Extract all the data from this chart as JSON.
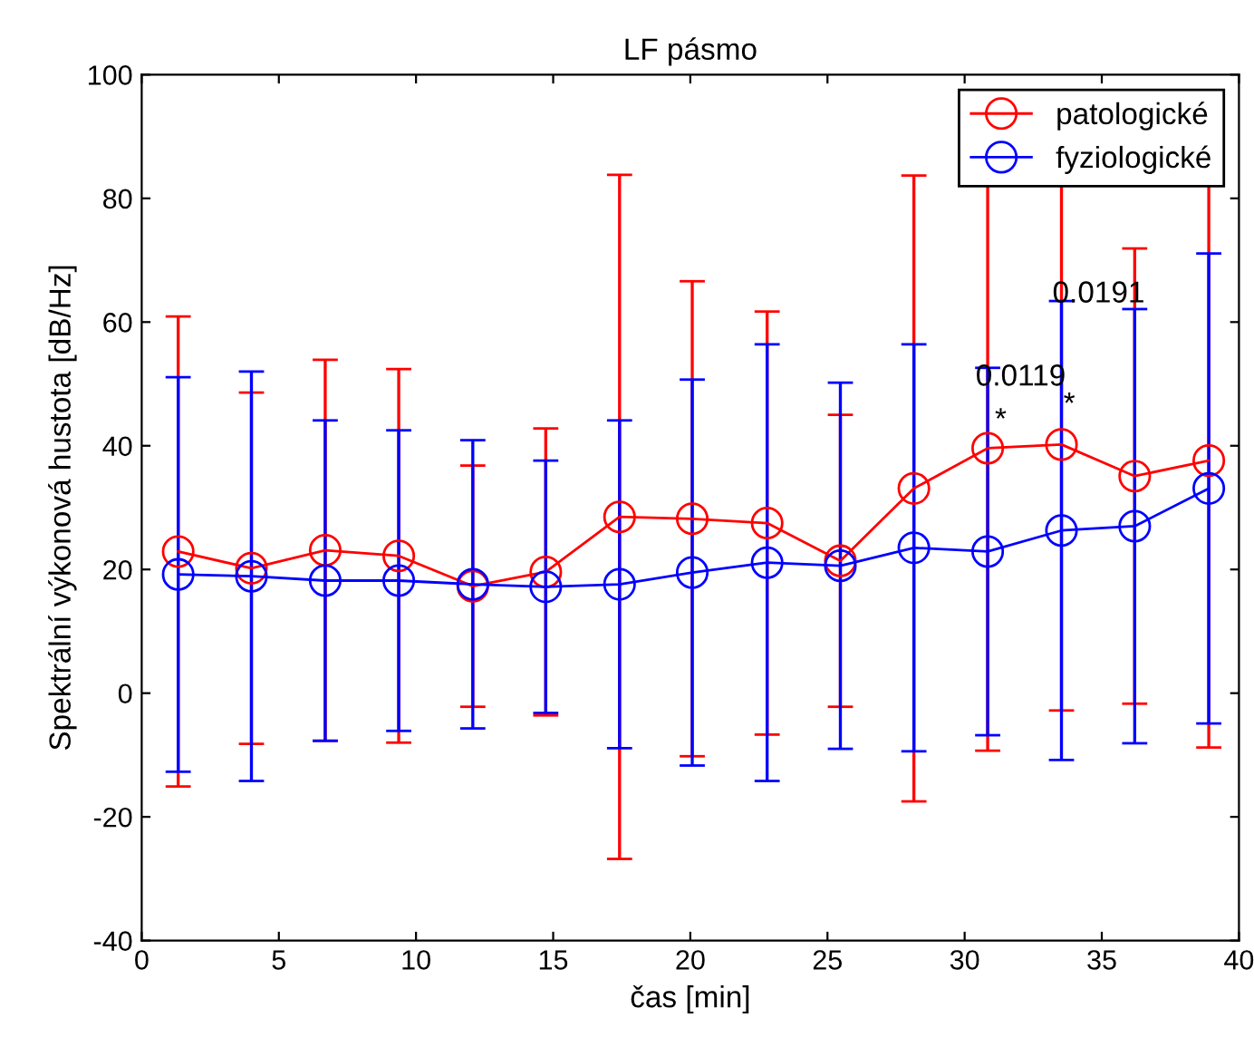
{
  "chart_data": {
    "type": "line",
    "title": "LF pásmo",
    "xlabel": "čas [min]",
    "ylabel": "Spektrální výkonová hustota [dB/Hz]",
    "x": [
      1.33,
      4.0,
      6.69,
      9.37,
      12.07,
      14.73,
      17.42,
      20.07,
      22.8,
      25.47,
      28.15,
      30.84,
      33.53,
      36.2,
      38.9
    ],
    "series": [
      {
        "name": "patologické",
        "color": "#ff0000",
        "values": [
          22.9,
          20.2,
          23.1,
          22.2,
          17.3,
          19.6,
          28.5,
          28.2,
          27.5,
          21.4,
          33.1,
          39.6,
          40.2,
          35.1,
          37.6
        ],
        "errors": [
          38.0,
          28.4,
          30.8,
          30.2,
          19.5,
          23.2,
          55.3,
          38.4,
          34.2,
          23.6,
          50.6,
          48.9,
          43.0,
          36.8,
          46.4
        ]
      },
      {
        "name": "fyziologické",
        "color": "#0000ff",
        "values": [
          19.2,
          18.9,
          18.2,
          18.2,
          17.6,
          17.2,
          17.6,
          19.5,
          21.1,
          20.6,
          23.5,
          22.9,
          26.3,
          27.0,
          33.1
        ],
        "errors": [
          31.9,
          33.1,
          25.9,
          24.3,
          23.3,
          20.4,
          26.5,
          31.2,
          35.3,
          29.6,
          32.9,
          29.7,
          37.1,
          35.1,
          38.0
        ]
      }
    ],
    "annotations": [
      "0.0119",
      "0.0191",
      "*",
      "*"
    ],
    "xlim": [
      0,
      40
    ],
    "xticks": [
      0,
      5,
      10,
      15,
      20,
      25,
      30,
      35,
      40
    ],
    "ylim": [
      -40,
      100
    ],
    "yticks": [
      -40,
      -20,
      0,
      20,
      40,
      60,
      80,
      100
    ],
    "marker": "circle",
    "line_style": "solid",
    "grid": false,
    "legend": "top right"
  }
}
